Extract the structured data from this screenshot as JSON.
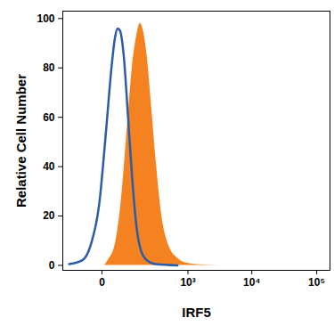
{
  "chart_data": {
    "type": "histogram",
    "xlabel": "IRF5",
    "ylabel": "Relative Cell Number",
    "log": "x",
    "xlim": [
      -150,
      160000
    ],
    "ylim": [
      -2,
      103
    ],
    "xticks": [
      0,
      {
        "value": 1000,
        "label": "10³"
      },
      {
        "value": 10000,
        "label": "10⁴"
      },
      {
        "value": 100000,
        "label": "10⁵"
      }
    ],
    "yticks": [
      0,
      20,
      40,
      60,
      80,
      100
    ],
    "series": [
      {
        "type": "area",
        "color": "#f58220",
        "x": [
          5,
          12,
          29,
          48,
          72,
          96,
          121,
          143,
          162,
          197,
          238,
          296,
          366,
          482,
          672,
          932,
          1506,
          3305
        ],
        "values": [
          0,
          2,
          8,
          25,
          55,
          80,
          93,
          98,
          96,
          85,
          65,
          40,
          20,
          8,
          3,
          1,
          0.3,
          0
        ]
      },
      {
        "type": "line",
        "color": "#2a5caa",
        "x": [
          -110,
          -51,
          -25,
          -5,
          8,
          20,
          29,
          37,
          45,
          58,
          76,
          96,
          121,
          149,
          197,
          285,
          672
        ],
        "values": [
          0.5,
          2,
          8,
          25,
          55,
          80,
          92,
          96,
          95,
          85,
          60,
          35,
          15,
          6,
          2,
          0.5,
          0
        ]
      }
    ]
  }
}
